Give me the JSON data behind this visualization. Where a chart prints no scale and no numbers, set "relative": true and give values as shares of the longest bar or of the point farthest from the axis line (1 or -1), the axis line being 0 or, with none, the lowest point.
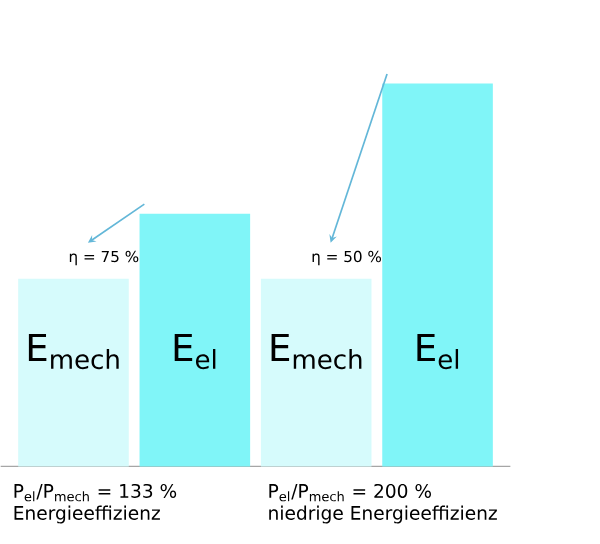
{
  "chart_data": {
    "type": "bar",
    "relative": true,
    "categories": [
      "E$_{mech}$",
      "E$_{el}$",
      "E$_{mech}$",
      "E$_{el}$"
    ],
    "values": [
      0.49,
      0.66,
      0.49,
      1
    ],
    "colors": [
      "#d6fbfc",
      "#80f5f8",
      "#d6fbfc",
      "#80f5f8"
    ],
    "annotations": [
      "η = 75 %",
      "η = 50 %",
      "P$_{el}$/P$_{mech}$ = 133 %",
      "Energieeffizienz",
      "P$_{el}$/P$_{mech}$ = 200 %",
      "niedrige Energieeffizienz"
    ]
  }
}
